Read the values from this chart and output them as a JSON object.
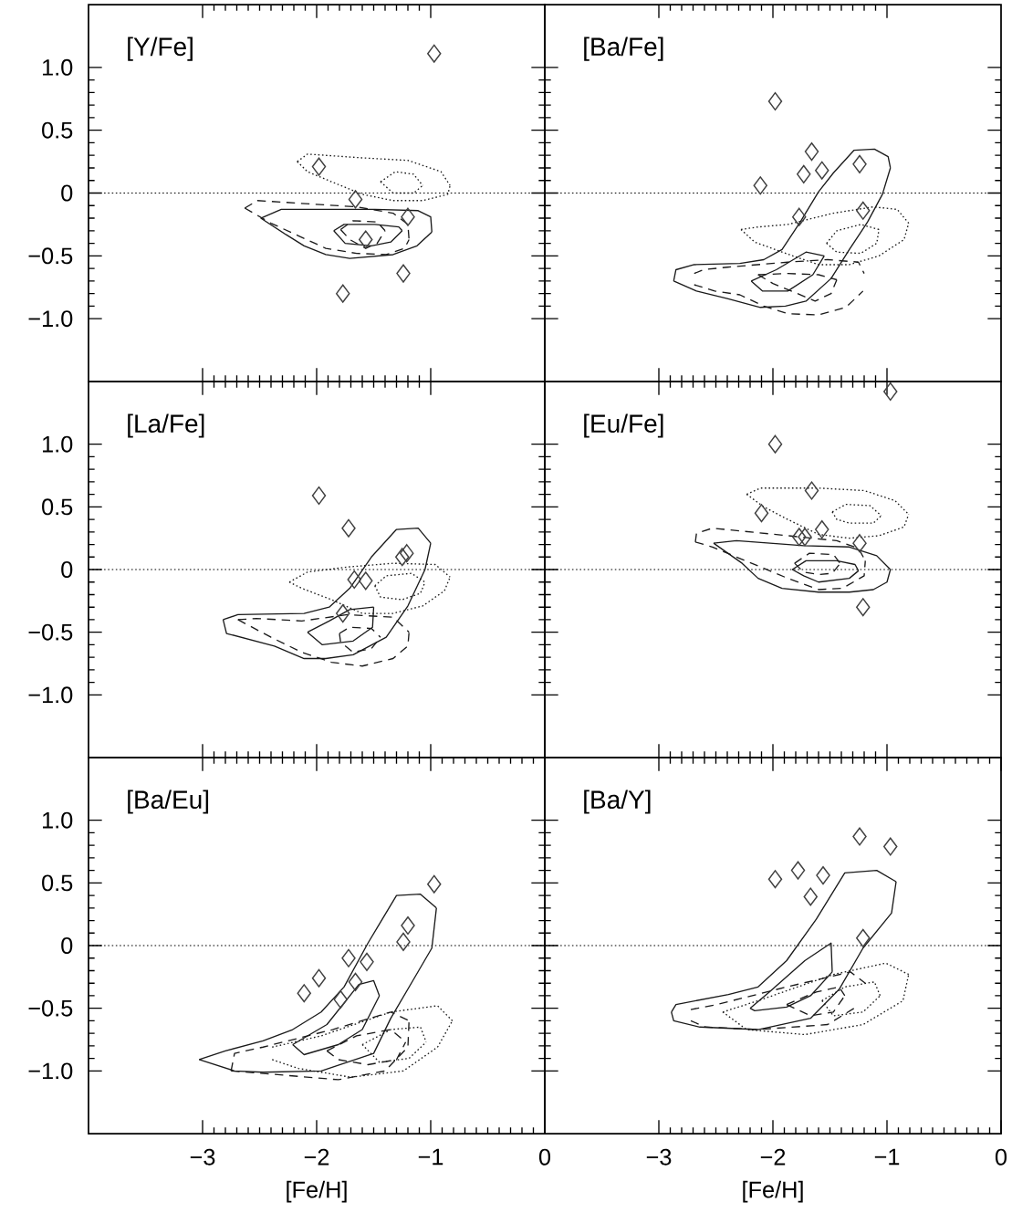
{
  "chart_data": [
    {
      "type": "line",
      "title": "[Y/Fe]",
      "xlim": [
        -4,
        0
      ],
      "xticks": [
        -3,
        -2,
        -1
      ],
      "ylim": [
        -1.5,
        1.5
      ],
      "yticks": [
        {
          "value": 1.0,
          "label": "1.0"
        },
        0.5,
        0,
        {
          "value": -0.5,
          "label": "−0.5"
        },
        {
          "value": -1.0,
          "label": "−1.0"
        }
      ],
      "tick_labels": "y",
      "ref_lines": [
        {
          "axis": "y",
          "value": 0,
          "line_style": "dotted"
        }
      ],
      "series": [
        {
          "line_style": "solid",
          "color": "#1a1a1a",
          "x": [
            -2.49,
            -2.31,
            -1.49,
            -1.11,
            -1.0,
            -0.99
          ],
          "values": [
            -0.2,
            -0.13,
            -0.13,
            -0.14,
            -0.19,
            -0.31
          ]
        },
        {
          "line_style": "solid",
          "color": "#1a1a1a",
          "x": [
            -2.49,
            -2.27,
            -2.11,
            -1.92,
            -1.71,
            -1.33,
            -1.12,
            -0.99
          ],
          "values": [
            -0.2,
            -0.33,
            -0.42,
            -0.49,
            -0.52,
            -0.49,
            -0.42,
            -0.31
          ]
        },
        {
          "line_style": "solid",
          "color": "#1a1a1a",
          "x": [
            -1.85,
            -1.76,
            -1.49,
            -1.28,
            -1.25
          ],
          "values": [
            -0.3,
            -0.25,
            -0.25,
            -0.27,
            -0.3
          ]
        },
        {
          "line_style": "solid",
          "color": "#1a1a1a",
          "x": [
            -1.85,
            -1.75,
            -1.52,
            -1.35,
            -1.25
          ],
          "values": [
            -0.3,
            -0.4,
            -0.42,
            -0.39,
            -0.3
          ]
        },
        {
          "line_style": "dashed",
          "color": "#1a1a1a",
          "x": [
            -2.63,
            -2.52,
            -1.65,
            -1.33,
            -1.2,
            -1.19
          ],
          "values": [
            -0.12,
            -0.06,
            -0.11,
            -0.16,
            -0.25,
            -0.37
          ]
        },
        {
          "line_style": "dashed",
          "color": "#1a1a1a",
          "x": [
            -2.63,
            -2.4,
            -2.16,
            -1.92,
            -1.65,
            -1.39,
            -1.23,
            -1.19
          ],
          "values": [
            -0.12,
            -0.24,
            -0.34,
            -0.44,
            -0.48,
            -0.49,
            -0.44,
            -0.37
          ]
        },
        {
          "line_style": "dashed",
          "color": "#1a1a1a",
          "x": [
            -1.79,
            -1.68,
            -1.47,
            -1.4
          ],
          "values": [
            -0.29,
            -0.22,
            -0.23,
            -0.3
          ]
        },
        {
          "line_style": "dashed",
          "color": "#1a1a1a",
          "x": [
            -1.79,
            -1.71,
            -1.57,
            -1.47,
            -1.4
          ],
          "values": [
            -0.29,
            -0.37,
            -0.44,
            -0.4,
            -0.3
          ]
        },
        {
          "line_style": "dotted",
          "color": "#1a1a1a",
          "x": [
            -2.17,
            -2.08,
            -1.6,
            -1.2,
            -0.91,
            -0.83
          ],
          "values": [
            0.25,
            0.31,
            0.28,
            0.26,
            0.17,
            0.06
          ]
        },
        {
          "line_style": "dotted",
          "color": "#1a1a1a",
          "x": [
            -2.17,
            -2.08,
            -1.87,
            -1.6,
            -1.33,
            -1.07,
            -0.85,
            -0.83
          ],
          "values": [
            0.25,
            0.17,
            0.09,
            -0.01,
            -0.06,
            -0.06,
            -0.01,
            0.06
          ]
        },
        {
          "line_style": "dotted",
          "color": "#1a1a1a",
          "x": [
            -1.44,
            -1.31,
            -1.15,
            -1.07
          ],
          "values": [
            0.09,
            0.17,
            0.15,
            0.06
          ]
        },
        {
          "line_style": "dotted",
          "color": "#1a1a1a",
          "x": [
            -1.44,
            -1.33,
            -1.15,
            -1.07
          ],
          "values": [
            0.09,
            0.0,
            0.0,
            0.06
          ]
        },
        {
          "type": "scatter",
          "marker": "diamond",
          "color": "#404040",
          "x": [
            -0.97,
            -1.98,
            -1.66,
            -1.2,
            -1.57,
            -1.24,
            -1.77
          ],
          "values": [
            1.11,
            0.21,
            -0.05,
            -0.19,
            -0.37,
            -0.64,
            -0.8
          ]
        }
      ]
    },
    {
      "type": "line",
      "title": "[Ba/Fe]",
      "xlim": [
        -4,
        0
      ],
      "xticks": [
        -3,
        -2,
        -1
      ],
      "ylim": [
        -1.5,
        1.5
      ],
      "yticks": [
        1.0,
        0.5,
        0,
        -0.5,
        -1.0
      ],
      "tick_labels": false,
      "ref_lines": [
        {
          "axis": "y",
          "value": 0,
          "line_style": "dotted"
        }
      ],
      "series": [
        {
          "line_style": "solid",
          "color": "#1a1a1a",
          "x": [
            -2.87,
            -2.85,
            -2.69,
            -2.29,
            -2.08,
            -1.92,
            -1.76,
            -1.6,
            -1.47,
            -1.29,
            -1.11,
            -0.99,
            -0.97
          ],
          "values": [
            -0.7,
            -0.61,
            -0.57,
            -0.56,
            -0.53,
            -0.45,
            -0.23,
            0.01,
            0.16,
            0.34,
            0.35,
            0.29,
            0.2
          ]
        },
        {
          "line_style": "solid",
          "color": "#1a1a1a",
          "x": [
            -2.87,
            -2.67,
            -2.4,
            -2.11,
            -1.89,
            -1.71,
            -1.49,
            -1.33,
            -1.17,
            -1.04,
            -0.97
          ],
          "values": [
            -0.7,
            -0.78,
            -0.84,
            -0.91,
            -0.9,
            -0.86,
            -0.68,
            -0.45,
            -0.23,
            -0.01,
            0.2
          ]
        },
        {
          "line_style": "solid",
          "color": "#1a1a1a",
          "x": [
            -2.19,
            -1.97,
            -1.71,
            -1.55
          ],
          "values": [
            -0.7,
            -0.61,
            -0.47,
            -0.5
          ]
        },
        {
          "line_style": "solid",
          "color": "#1a1a1a",
          "x": [
            -2.19,
            -2.09,
            -1.87,
            -1.65,
            -1.55
          ],
          "values": [
            -0.7,
            -0.78,
            -0.78,
            -0.65,
            -0.5
          ]
        },
        {
          "line_style": "dashed",
          "color": "#1a1a1a",
          "x": [
            -2.69,
            -2.61,
            -2.4,
            -1.87,
            -1.52,
            -1.25,
            -1.2
          ],
          "values": [
            -0.64,
            -0.61,
            -0.59,
            -0.55,
            -0.53,
            -0.55,
            -0.64
          ]
        },
        {
          "line_style": "dashed",
          "color": "#1a1a1a",
          "x": [
            -2.69,
            -2.51,
            -2.29,
            -2.08,
            -1.87,
            -1.6,
            -1.36,
            -1.21
          ],
          "values": [
            -0.73,
            -0.78,
            -0.81,
            -0.9,
            -0.96,
            -0.97,
            -0.91,
            -0.78
          ]
        },
        {
          "line_style": "dashed",
          "color": "#1a1a1a",
          "x": [
            -2.13,
            -1.87,
            -1.6,
            -1.44
          ],
          "values": [
            -0.65,
            -0.64,
            -0.65,
            -0.69
          ]
        },
        {
          "line_style": "dashed",
          "color": "#1a1a1a",
          "x": [
            -2.13,
            -2.0,
            -1.81,
            -1.63,
            -1.49,
            -1.44
          ],
          "values": [
            -0.65,
            -0.72,
            -0.79,
            -0.86,
            -0.8,
            -0.69
          ]
        },
        {
          "line_style": "dotted",
          "color": "#1a1a1a",
          "x": [
            -2.28,
            -2.13,
            -1.87,
            -1.47,
            -1.12,
            -0.91,
            -0.81
          ],
          "values": [
            -0.29,
            -0.27,
            -0.25,
            -0.16,
            -0.11,
            -0.13,
            -0.24
          ]
        },
        {
          "line_style": "dotted",
          "color": "#1a1a1a",
          "x": [
            -2.28,
            -2.16,
            -1.92,
            -1.6,
            -1.33,
            -1.07,
            -0.85,
            -0.81
          ],
          "values": [
            -0.29,
            -0.39,
            -0.47,
            -0.57,
            -0.57,
            -0.5,
            -0.37,
            -0.24
          ]
        },
        {
          "line_style": "dotted",
          "color": "#1a1a1a",
          "x": [
            -1.53,
            -1.44,
            -1.23,
            -1.07
          ],
          "values": [
            -0.4,
            -0.3,
            -0.25,
            -0.29
          ]
        },
        {
          "line_style": "dotted",
          "color": "#1a1a1a",
          "x": [
            -1.53,
            -1.44,
            -1.23,
            -1.09,
            -1.07
          ],
          "values": [
            -0.4,
            -0.47,
            -0.48,
            -0.4,
            -0.29
          ]
        },
        {
          "type": "scatter",
          "marker": "diamond",
          "color": "#404040",
          "x": [
            -1.98,
            -1.66,
            -1.57,
            -1.73,
            -1.24,
            -2.11,
            -1.21,
            -1.77
          ],
          "values": [
            0.73,
            0.33,
            0.18,
            0.15,
            0.23,
            0.06,
            -0.14,
            -0.19
          ]
        }
      ]
    },
    {
      "type": "line",
      "title": "[La/Fe]",
      "xlim": [
        -4,
        0
      ],
      "xticks": [
        -3,
        -2,
        -1
      ],
      "ylim": [
        -1.5,
        1.5
      ],
      "yticks": [
        {
          "value": 1.0,
          "label": "1.0"
        },
        0.5,
        0,
        {
          "value": -0.5,
          "label": "−0.5"
        },
        {
          "value": -1.0,
          "label": "−1.0"
        }
      ],
      "tick_labels": "y",
      "ref_lines": [
        {
          "axis": "y",
          "value": 0,
          "line_style": "dotted"
        }
      ],
      "series": [
        {
          "line_style": "solid",
          "color": "#1a1a1a",
          "x": [
            -2.82,
            -2.69,
            -2.11,
            -1.89,
            -1.71,
            -1.52,
            -1.3,
            -1.11,
            -1.0
          ],
          "values": [
            -0.4,
            -0.36,
            -0.35,
            -0.3,
            -0.15,
            0.1,
            0.32,
            0.33,
            0.21
          ]
        },
        {
          "line_style": "solid",
          "color": "#1a1a1a",
          "x": [
            -2.82,
            -2.79,
            -2.37,
            -2.11,
            -1.92,
            -1.68,
            -1.39,
            -1.2,
            -1.05,
            -1.0
          ],
          "values": [
            -0.4,
            -0.51,
            -0.61,
            -0.71,
            -0.71,
            -0.68,
            -0.54,
            -0.29,
            0.0,
            0.21
          ]
        },
        {
          "line_style": "solid",
          "color": "#1a1a1a",
          "x": [
            -2.08,
            -1.89,
            -1.71,
            -1.5
          ],
          "values": [
            -0.5,
            -0.41,
            -0.32,
            -0.3
          ]
        },
        {
          "line_style": "solid",
          "color": "#1a1a1a",
          "x": [
            -2.08,
            -1.95,
            -1.68,
            -1.51,
            -1.5
          ],
          "values": [
            -0.5,
            -0.6,
            -0.57,
            -0.46,
            -0.3
          ]
        },
        {
          "line_style": "dashed",
          "color": "#1a1a1a",
          "x": [
            -2.69,
            -2.53,
            -2.13,
            -1.73,
            -1.33,
            -1.19
          ],
          "values": [
            -0.4,
            -0.39,
            -0.41,
            -0.36,
            -0.38,
            -0.5
          ]
        },
        {
          "line_style": "dashed",
          "color": "#1a1a1a",
          "x": [
            -2.69,
            -2.4,
            -2.13,
            -1.87,
            -1.6,
            -1.33,
            -1.2,
            -1.19
          ],
          "values": [
            -0.4,
            -0.54,
            -0.66,
            -0.74,
            -0.77,
            -0.71,
            -0.61,
            -0.5
          ]
        },
        {
          "line_style": "dashed",
          "color": "#1a1a1a",
          "x": [
            -1.8,
            -1.71,
            -1.52,
            -1.44
          ],
          "values": [
            -0.51,
            -0.46,
            -0.47,
            -0.54
          ]
        },
        {
          "line_style": "dashed",
          "color": "#1a1a1a",
          "x": [
            -1.8,
            -1.79,
            -1.68,
            -1.52,
            -1.44
          ],
          "values": [
            -0.51,
            -0.58,
            -0.66,
            -0.63,
            -0.54
          ]
        },
        {
          "line_style": "dotted",
          "color": "#1a1a1a",
          "x": [
            -2.24,
            -2.08,
            -1.73,
            -1.33,
            -0.96,
            -0.83
          ],
          "values": [
            -0.1,
            -0.02,
            0.02,
            0.05,
            0.04,
            -0.06
          ]
        },
        {
          "line_style": "dotted",
          "color": "#1a1a1a",
          "x": [
            -2.24,
            -2.13,
            -1.87,
            -1.6,
            -1.33,
            -1.07,
            -0.88,
            -0.83
          ],
          "values": [
            -0.1,
            -0.15,
            -0.24,
            -0.35,
            -0.35,
            -0.29,
            -0.17,
            -0.06
          ]
        },
        {
          "line_style": "dotted",
          "color": "#1a1a1a",
          "x": [
            -1.49,
            -1.39,
            -1.17,
            -1.05
          ],
          "values": [
            -0.13,
            -0.05,
            -0.03,
            -0.1
          ]
        },
        {
          "line_style": "dotted",
          "color": "#1a1a1a",
          "x": [
            -1.49,
            -1.44,
            -1.25,
            -1.09,
            -1.05
          ],
          "values": [
            -0.13,
            -0.22,
            -0.24,
            -0.19,
            -0.1
          ]
        },
        {
          "type": "scatter",
          "marker": "diamond",
          "color": "#404040",
          "x": [
            -1.98,
            -1.72,
            -1.21,
            -1.25,
            -1.67,
            -1.57,
            -1.77
          ],
          "values": [
            0.59,
            0.33,
            0.13,
            0.1,
            -0.08,
            -0.09,
            -0.35
          ]
        }
      ]
    },
    {
      "type": "line",
      "title": "[Eu/Fe]",
      "xlim": [
        -4,
        0
      ],
      "xticks": [
        -3,
        -2,
        -1
      ],
      "ylim": [
        -1.5,
        1.5
      ],
      "yticks": [
        1.0,
        0.5,
        0,
        -0.5,
        -1.0
      ],
      "tick_labels": false,
      "ref_lines": [
        {
          "axis": "y",
          "value": 0,
          "line_style": "dotted"
        }
      ],
      "series": [
        {
          "line_style": "solid",
          "color": "#1a1a1a",
          "x": [
            -2.52,
            -2.32,
            -1.73,
            -1.33,
            -1.09,
            -0.97
          ],
          "values": [
            0.21,
            0.23,
            0.19,
            0.18,
            0.11,
            0.0
          ]
        },
        {
          "line_style": "solid",
          "color": "#1a1a1a",
          "x": [
            -2.52,
            -2.27,
            -2.13,
            -1.92,
            -1.6,
            -1.33,
            -1.12,
            -1.0,
            -0.97
          ],
          "values": [
            0.21,
            0.05,
            -0.07,
            -0.15,
            -0.18,
            -0.18,
            -0.16,
            -0.1,
            0.0
          ]
        },
        {
          "line_style": "solid",
          "color": "#1a1a1a",
          "x": [
            -1.83,
            -1.71,
            -1.44,
            -1.28,
            -1.25
          ],
          "values": [
            0.0,
            0.07,
            0.07,
            0.04,
            -0.01
          ]
        },
        {
          "line_style": "solid",
          "color": "#1a1a1a",
          "x": [
            -1.83,
            -1.73,
            -1.6,
            -1.33,
            -1.25
          ],
          "values": [
            0.0,
            -0.05,
            -0.1,
            -0.07,
            -0.01
          ]
        },
        {
          "line_style": "dashed",
          "color": "#1a1a1a",
          "x": [
            -2.68,
            -2.67,
            -2.53,
            -1.87,
            -1.44,
            -1.25,
            -1.19
          ],
          "values": [
            0.22,
            0.29,
            0.33,
            0.27,
            0.23,
            0.17,
            0.07
          ]
        },
        {
          "line_style": "dashed",
          "color": "#1a1a1a",
          "x": [
            -2.68,
            -2.53,
            -2.32,
            -2.08,
            -1.87,
            -1.6,
            -1.39,
            -1.2,
            -1.19
          ],
          "values": [
            0.22,
            0.18,
            0.1,
            0.01,
            -0.07,
            -0.16,
            -0.15,
            -0.05,
            0.07
          ]
        },
        {
          "line_style": "dashed",
          "color": "#1a1a1a",
          "x": [
            -1.81,
            -1.68,
            -1.47,
            -1.41
          ],
          "values": [
            0.05,
            0.13,
            0.12,
            0.05
          ]
        },
        {
          "line_style": "dashed",
          "color": "#1a1a1a",
          "x": [
            -1.81,
            -1.73,
            -1.6,
            -1.48,
            -1.41
          ],
          "values": [
            0.05,
            -0.02,
            -0.04,
            -0.03,
            0.05
          ]
        },
        {
          "line_style": "dotted",
          "color": "#1a1a1a",
          "x": [
            -2.23,
            -2.11,
            -1.6,
            -1.2,
            -0.93,
            -0.81
          ],
          "values": [
            0.6,
            0.65,
            0.65,
            0.63,
            0.55,
            0.44
          ]
        },
        {
          "line_style": "dotted",
          "color": "#1a1a1a",
          "x": [
            -2.23,
            -2.08,
            -1.87,
            -1.6,
            -1.33,
            -1.07,
            -0.85,
            -0.81
          ],
          "values": [
            0.6,
            0.5,
            0.4,
            0.28,
            0.25,
            0.27,
            0.34,
            0.44
          ]
        },
        {
          "line_style": "dotted",
          "color": "#1a1a1a",
          "x": [
            -1.48,
            -1.36,
            -1.15,
            -1.05
          ],
          "values": [
            0.46,
            0.52,
            0.51,
            0.43
          ]
        },
        {
          "line_style": "dotted",
          "color": "#1a1a1a",
          "x": [
            -1.48,
            -1.44,
            -1.33,
            -1.12,
            -1.05
          ],
          "values": [
            0.46,
            0.4,
            0.37,
            0.37,
            0.43
          ]
        },
        {
          "type": "scatter",
          "marker": "diamond",
          "color": "#404040",
          "x": [
            -0.97,
            -1.98,
            -1.66,
            -2.1,
            -1.57,
            -1.77,
            -1.72,
            -1.24,
            -1.21
          ],
          "values": [
            1.42,
            1.0,
            0.63,
            0.45,
            0.32,
            0.26,
            0.26,
            0.21,
            -0.3
          ]
        }
      ]
    },
    {
      "type": "line",
      "title": "[Ba/Eu]",
      "xlabel": "[Fe/H]",
      "xlim": [
        -4,
        0
      ],
      "xticks": [
        {
          "value": -3,
          "label": "−3"
        },
        {
          "value": -2,
          "label": "−2"
        },
        {
          "value": -1,
          "label": "−1"
        },
        0
      ],
      "ylim": [
        -1.5,
        1.5
      ],
      "yticks": [
        {
          "value": 1.0,
          "label": "1.0"
        },
        0.5,
        0,
        {
          "value": -0.5,
          "label": "−0.5"
        },
        {
          "value": -1.0,
          "label": "−1.0"
        }
      ],
      "ref_lines": [
        {
          "axis": "y",
          "value": 0,
          "line_style": "dotted"
        }
      ],
      "series": [
        {
          "line_style": "solid",
          "color": "#1a1a1a",
          "x": [
            -3.03,
            -2.8,
            -2.47,
            -2.21,
            -1.96,
            -1.76,
            -1.55,
            -1.3,
            -1.09,
            -0.95
          ],
          "values": [
            -0.91,
            -0.84,
            -0.76,
            -0.67,
            -0.53,
            -0.33,
            0.02,
            0.4,
            0.41,
            0.3
          ]
        },
        {
          "line_style": "solid",
          "color": "#1a1a1a",
          "x": [
            -3.03,
            -2.72,
            -2.47,
            -1.96,
            -1.5,
            -1.35,
            -1.17,
            -0.99,
            -0.95
          ],
          "values": [
            -0.91,
            -1.0,
            -1.01,
            -1.0,
            -0.86,
            -0.58,
            -0.3,
            -0.02,
            0.3
          ]
        },
        {
          "line_style": "solid",
          "color": "#1a1a1a",
          "x": [
            -2.21,
            -1.91,
            -1.63,
            -1.5,
            -1.45
          ],
          "values": [
            -0.79,
            -0.63,
            -0.31,
            -0.28,
            -0.4
          ]
        },
        {
          "line_style": "solid",
          "color": "#1a1a1a",
          "x": [
            -2.21,
            -2.11,
            -1.81,
            -1.6,
            -1.45
          ],
          "values": [
            -0.79,
            -0.87,
            -0.79,
            -0.67,
            -0.4
          ]
        },
        {
          "line_style": "dashed",
          "color": "#1a1a1a",
          "x": [
            -2.75,
            -2.72,
            -2.47,
            -1.86,
            -1.35,
            -1.19
          ],
          "values": [
            -1.0,
            -0.86,
            -0.81,
            -0.67,
            -0.53,
            -0.6
          ]
        },
        {
          "line_style": "dashed",
          "color": "#1a1a1a",
          "x": [
            -2.75,
            -2.47,
            -1.81,
            -1.4,
            -1.2,
            -1.19
          ],
          "values": [
            -1.0,
            -1.02,
            -1.07,
            -1.0,
            -0.81,
            -0.6
          ]
        },
        {
          "line_style": "dashed",
          "color": "#1a1a1a",
          "x": [
            -1.91,
            -1.65,
            -1.35,
            -1.22
          ],
          "values": [
            -0.84,
            -0.72,
            -0.67,
            -0.77
          ]
        },
        {
          "line_style": "dashed",
          "color": "#1a1a1a",
          "x": [
            -1.91,
            -1.81,
            -1.55,
            -1.3,
            -1.22
          ],
          "values": [
            -0.84,
            -0.91,
            -0.95,
            -0.91,
            -0.77
          ]
        },
        {
          "line_style": "dotted",
          "color": "#1a1a1a",
          "x": [
            -2.39,
            -1.96,
            -1.35,
            -0.94,
            -0.81
          ],
          "values": [
            -0.81,
            -0.72,
            -0.53,
            -0.48,
            -0.6
          ]
        },
        {
          "line_style": "dotted",
          "color": "#1a1a1a",
          "x": [
            -2.39,
            -2.16,
            -1.7,
            -1.24,
            -0.94,
            -0.81
          ],
          "values": [
            -0.91,
            -0.98,
            -1.05,
            -1.0,
            -0.81,
            -0.6
          ]
        },
        {
          "line_style": "dotted",
          "color": "#1a1a1a",
          "x": [
            -1.6,
            -1.35,
            -1.09,
            -1.04
          ],
          "values": [
            -0.79,
            -0.67,
            -0.65,
            -0.77
          ]
        },
        {
          "line_style": "dotted",
          "color": "#1a1a1a",
          "x": [
            -1.6,
            -1.45,
            -1.19,
            -1.04
          ],
          "values": [
            -0.79,
            -0.93,
            -0.9,
            -0.77
          ]
        },
        {
          "type": "scatter",
          "marker": "diamond",
          "color": "#404040",
          "x": [
            -0.97,
            -1.2,
            -1.24,
            -1.72,
            -1.56,
            -1.98,
            -1.66,
            -2.11,
            -1.79
          ],
          "values": [
            0.49,
            0.16,
            0.03,
            -0.1,
            -0.13,
            -0.26,
            -0.29,
            -0.38,
            -0.43
          ]
        }
      ]
    },
    {
      "type": "line",
      "title": "[Ba/Y]",
      "xlabel": "[Fe/H]",
      "xlim": [
        -4,
        0
      ],
      "xticks": [
        {
          "value": -3,
          "label": "−3"
        },
        {
          "value": -2,
          "label": "−2"
        },
        {
          "value": -1,
          "label": "−1"
        },
        0
      ],
      "ylim": [
        -1.5,
        1.5
      ],
      "yticks": [
        1.0,
        0.5,
        0,
        -0.5,
        -1.0
      ],
      "tick_labels": "x",
      "ref_lines": [
        {
          "axis": "y",
          "value": 0,
          "line_style": "dotted"
        }
      ],
      "series": [
        {
          "line_style": "solid",
          "color": "#1a1a1a",
          "x": [
            -2.89,
            -2.85,
            -2.39,
            -2.13,
            -1.88,
            -1.62,
            -1.37,
            -1.09,
            -0.92
          ],
          "values": [
            -0.53,
            -0.47,
            -0.39,
            -0.33,
            -0.12,
            0.21,
            0.58,
            0.6,
            0.51
          ]
        },
        {
          "line_style": "solid",
          "color": "#1a1a1a",
          "x": [
            -2.89,
            -2.87,
            -2.64,
            -2.13,
            -1.67,
            -1.42,
            -1.21,
            -0.96,
            -0.92
          ],
          "values": [
            -0.53,
            -0.6,
            -0.65,
            -0.67,
            -0.58,
            -0.35,
            -0.02,
            0.26,
            0.51
          ]
        },
        {
          "line_style": "solid",
          "color": "#1a1a1a",
          "x": [
            -2.2,
            -2.03,
            -1.72,
            -1.49,
            -1.48
          ],
          "values": [
            -0.5,
            -0.37,
            -0.12,
            0.02,
            -0.21
          ]
        },
        {
          "line_style": "solid",
          "color": "#1a1a1a",
          "x": [
            -2.2,
            -2.16,
            -1.88,
            -1.67,
            -1.48
          ],
          "values": [
            -0.5,
            -0.52,
            -0.49,
            -0.4,
            -0.21
          ]
        },
        {
          "line_style": "dashed",
          "color": "#1a1a1a",
          "x": [
            -2.72,
            -2.49,
            -1.88,
            -1.32,
            -1.19
          ],
          "values": [
            -0.51,
            -0.47,
            -0.33,
            -0.21,
            -0.3
          ]
        },
        {
          "line_style": "dashed",
          "color": "#1a1a1a",
          "x": [
            -2.72,
            -2.59,
            -2.13,
            -1.52,
            -1.27
          ],
          "values": [
            -0.6,
            -0.65,
            -0.67,
            -0.63,
            -0.49
          ]
        },
        {
          "line_style": "dashed",
          "color": "#1a1a1a",
          "x": [
            -1.88,
            -1.62,
            -1.42,
            -1.37
          ],
          "values": [
            -0.47,
            -0.37,
            -0.33,
            -0.4
          ]
        },
        {
          "line_style": "dashed",
          "color": "#1a1a1a",
          "x": [
            -1.88,
            -1.67,
            -1.47,
            -1.37
          ],
          "values": [
            -0.47,
            -0.56,
            -0.53,
            -0.4
          ]
        },
        {
          "line_style": "dotted",
          "color": "#1a1a1a",
          "x": [
            -2.44,
            -2.13,
            -1.47,
            -1.01,
            -0.81
          ],
          "values": [
            -0.53,
            -0.44,
            -0.23,
            -0.14,
            -0.23
          ]
        },
        {
          "line_style": "dotted",
          "color": "#1a1a1a",
          "x": [
            -2.44,
            -2.23,
            -1.72,
            -1.21,
            -0.86,
            -0.81
          ],
          "values": [
            -0.53,
            -0.67,
            -0.71,
            -0.63,
            -0.44,
            -0.23
          ]
        },
        {
          "line_style": "dotted",
          "color": "#1a1a1a",
          "x": [
            -1.57,
            -1.37,
            -1.11,
            -1.06
          ],
          "values": [
            -0.44,
            -0.33,
            -0.29,
            -0.4
          ]
        },
        {
          "line_style": "dotted",
          "color": "#1a1a1a",
          "x": [
            -1.57,
            -1.47,
            -1.21,
            -1.06
          ],
          "values": [
            -0.44,
            -0.56,
            -0.53,
            -0.4
          ]
        },
        {
          "type": "scatter",
          "marker": "diamond",
          "color": "#404040",
          "x": [
            -1.24,
            -0.97,
            -1.78,
            -1.56,
            -1.98,
            -1.67,
            -1.21
          ],
          "values": [
            0.87,
            0.79,
            0.6,
            0.56,
            0.53,
            0.39,
            0.06
          ]
        }
      ]
    }
  ]
}
